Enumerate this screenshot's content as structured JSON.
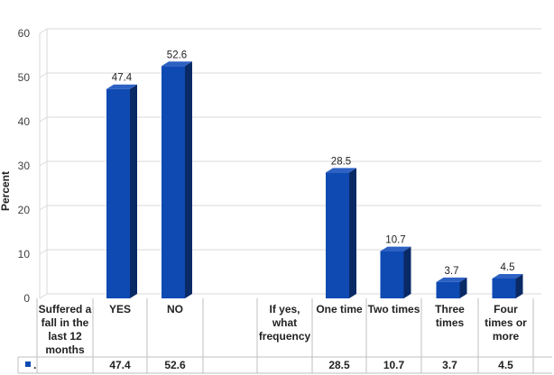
{
  "chart_data": {
    "type": "bar",
    "title": "",
    "ylabel": "Percent",
    "ylim": [
      0,
      60
    ],
    "yticks": [
      0,
      10,
      20,
      30,
      40,
      50,
      60
    ],
    "grid": true,
    "categories": [
      "Suffered a fall in the last 12 months",
      "YES",
      "NO",
      "",
      "If yes, what frequency",
      "One time",
      "Two times",
      "Three times",
      "Four times or more"
    ],
    "values": [
      null,
      47.4,
      52.6,
      null,
      null,
      28.5,
      10.7,
      3.7,
      4.5
    ],
    "table_values": [
      "",
      "47.4",
      "52.6",
      "",
      "",
      "28.5",
      "10.7",
      "3.7",
      "4.5"
    ],
    "series": [
      {
        "name": ".",
        "values": [
          null,
          47.4,
          52.6,
          null,
          null,
          28.5,
          10.7,
          3.7,
          4.5
        ]
      }
    ],
    "legend_key": ".",
    "colors": {
      "front": "#0f4ab3",
      "side": "#0a2a66",
      "top": "#2d62c4"
    }
  }
}
